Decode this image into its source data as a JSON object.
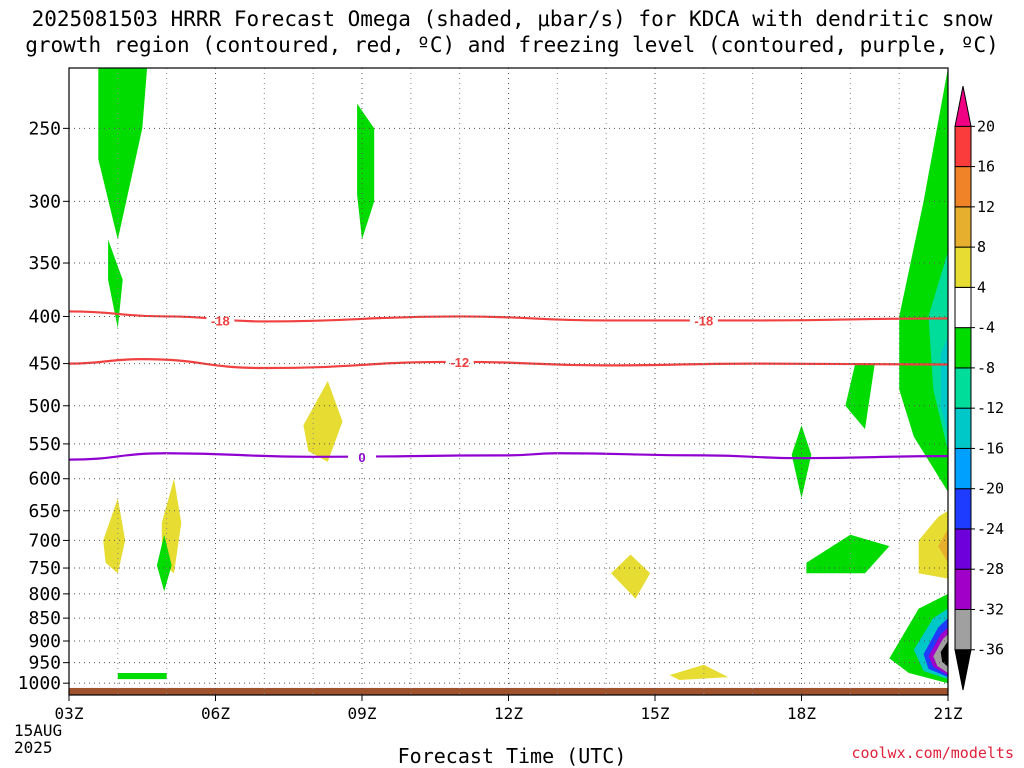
{
  "header": {
    "title_line1": "2025081503 HRRR Forecast Omega (shaded, μbar/s) for KDCA with dendritic snow",
    "title_line2": "growth region (contoured, red, ºC) and freezing level (contoured, purple, ºC)"
  },
  "footer": {
    "credit": "coolwx.com/modelts"
  },
  "chart_data": {
    "type": "heatmap",
    "title": "2025081503 HRRR Forecast Omega (shaded, μbar/s) for KDCA with dendritic snow growth region (contoured, red, ºC) and freezing level (contoured, purple, ºC)",
    "xlabel": "Forecast Time (UTC)",
    "ylabel": "",
    "x_date_label": [
      "15AUG",
      "2025"
    ],
    "x_ticks": [
      {
        "hour": 0,
        "label": "03Z"
      },
      {
        "hour": 3,
        "label": "06Z"
      },
      {
        "hour": 6,
        "label": "09Z"
      },
      {
        "hour": 9,
        "label": "12Z"
      },
      {
        "hour": 12,
        "label": "15Z"
      },
      {
        "hour": 15,
        "label": "18Z"
      },
      {
        "hour": 18,
        "label": "21Z"
      }
    ],
    "xlim": [
      0,
      18
    ],
    "y_ticks": [
      250,
      300,
      350,
      400,
      450,
      500,
      550,
      600,
      650,
      700,
      750,
      800,
      850,
      900,
      950,
      1000
    ],
    "ylim_hpa": [
      1030,
      215
    ],
    "y_scale": "log",
    "grid": true,
    "colorbar": {
      "levels": [
        -36,
        -32,
        -28,
        -24,
        -20,
        -16,
        -12,
        -8,
        -4,
        4,
        8,
        12,
        16,
        20
      ],
      "colors": [
        "#000000",
        "#a0a0a0",
        "#a000c8",
        "#6e00dc",
        "#1e3cff",
        "#00a0ff",
        "#00c8c8",
        "#00dc9a",
        "#00dc00",
        "#ffffff",
        "#e6dc32",
        "#e6af2d",
        "#f08228",
        "#fa3c3c",
        "#f00082"
      ]
    },
    "contours": [
      {
        "label": "-18",
        "color": "#f04040",
        "points": [
          [
            0,
            395
          ],
          [
            2,
            400
          ],
          [
            4,
            405
          ],
          [
            8,
            400
          ],
          [
            11,
            404
          ],
          [
            14,
            404
          ],
          [
            18,
            402
          ]
        ]
      },
      {
        "label": "-12",
        "color": "#f04040",
        "points": [
          [
            0,
            450
          ],
          [
            1.5,
            445
          ],
          [
            4,
            455
          ],
          [
            8,
            448
          ],
          [
            11,
            452
          ],
          [
            14,
            450
          ],
          [
            18,
            451
          ]
        ]
      },
      {
        "label": "0",
        "color": "#9000d0",
        "points": [
          [
            0,
            572
          ],
          [
            2,
            563
          ],
          [
            5,
            568
          ],
          [
            9,
            566
          ],
          [
            10,
            563
          ],
          [
            13,
            566
          ],
          [
            15,
            570
          ],
          [
            18,
            567
          ]
        ]
      }
    ],
    "contour_labels": [
      {
        "label": "-18",
        "hour": 3.1,
        "hpa": 404,
        "color": "#f04040"
      },
      {
        "label": "-18",
        "hour": 13.0,
        "hpa": 404,
        "color": "#f04040"
      },
      {
        "label": "-12",
        "hour": 8.0,
        "hpa": 448,
        "color": "#f04040"
      },
      {
        "label": "0",
        "hour": 6.0,
        "hpa": 568,
        "color": "#9000d0"
      }
    ],
    "shaded_regions": [
      {
        "value": -6,
        "color": "#00dc00",
        "points": [
          [
            0.6,
            215
          ],
          [
            1.6,
            215
          ],
          [
            1.5,
            250
          ],
          [
            1.0,
            330
          ],
          [
            0.6,
            270
          ]
        ]
      },
      {
        "value": -6,
        "color": "#00dc00",
        "points": [
          [
            0.8,
            330
          ],
          [
            1.1,
            365
          ],
          [
            1.0,
            412
          ],
          [
            0.8,
            365
          ]
        ]
      },
      {
        "value": -6,
        "color": "#00dc00",
        "points": [
          [
            5.9,
            235
          ],
          [
            6.25,
            250
          ],
          [
            6.25,
            300
          ],
          [
            6.0,
            330
          ],
          [
            5.9,
            295
          ]
        ]
      },
      {
        "value": 6,
        "color": "#e6dc32",
        "points": [
          [
            4.8,
            525
          ],
          [
            5.3,
            470
          ],
          [
            5.6,
            520
          ],
          [
            5.3,
            575
          ],
          [
            4.9,
            560
          ]
        ]
      },
      {
        "value": 6,
        "color": "#e6dc32",
        "points": [
          [
            0.7,
            700
          ],
          [
            1.0,
            630
          ],
          [
            1.15,
            700
          ],
          [
            1.0,
            760
          ],
          [
            0.75,
            740
          ]
        ]
      },
      {
        "value": 6,
        "color": "#e6dc32",
        "points": [
          [
            1.9,
            670
          ],
          [
            2.15,
            600
          ],
          [
            2.3,
            670
          ],
          [
            2.15,
            760
          ],
          [
            1.9,
            740
          ]
        ]
      },
      {
        "value": -6,
        "color": "#00dc00",
        "points": [
          [
            1.8,
            745
          ],
          [
            1.95,
            690
          ],
          [
            2.1,
            745
          ],
          [
            1.95,
            795
          ]
        ]
      },
      {
        "value": -6,
        "color": "#00dc00",
        "points": [
          [
            1.0,
            975
          ],
          [
            2.0,
            975
          ],
          [
            2.0,
            990
          ],
          [
            1.0,
            990
          ]
        ]
      },
      {
        "value": 6,
        "color": "#e6dc32",
        "points": [
          [
            11.1,
            760
          ],
          [
            11.5,
            725
          ],
          [
            11.9,
            760
          ],
          [
            11.6,
            810
          ]
        ]
      },
      {
        "value": -6,
        "color": "#00dc00",
        "points": [
          [
            14.8,
            565
          ],
          [
            15.0,
            525
          ],
          [
            15.2,
            565
          ],
          [
            15.0,
            630
          ]
        ]
      },
      {
        "value": -6,
        "color": "#00dc00",
        "points": [
          [
            15.9,
            500
          ],
          [
            16.1,
            450
          ],
          [
            16.5,
            450
          ],
          [
            16.3,
            530
          ]
        ]
      },
      {
        "value": -6,
        "color": "#00dc00",
        "points": [
          [
            15.1,
            740
          ],
          [
            16.0,
            690
          ],
          [
            16.8,
            710
          ],
          [
            16.3,
            760
          ],
          [
            15.1,
            760
          ]
        ]
      },
      {
        "value": 6,
        "color": "#e6dc32",
        "points": [
          [
            12.3,
            980
          ],
          [
            13.0,
            955
          ],
          [
            13.5,
            985
          ],
          [
            12.5,
            992
          ]
        ]
      },
      {
        "value": -6,
        "color": "#00dc00",
        "points": [
          [
            17.0,
            400
          ],
          [
            17.5,
            300
          ],
          [
            18.0,
            215
          ],
          [
            18.0,
            620
          ],
          [
            17.3,
            540
          ],
          [
            17.0,
            480
          ]
        ]
      },
      {
        "value": -10,
        "color": "#00dc9a",
        "points": [
          [
            17.6,
            400
          ],
          [
            18.0,
            340
          ],
          [
            18.0,
            560
          ],
          [
            17.7,
            480
          ]
        ]
      },
      {
        "value": -14,
        "color": "#00c8c8",
        "points": [
          [
            17.85,
            440
          ],
          [
            18.0,
            420
          ],
          [
            18.0,
            540
          ],
          [
            17.85,
            500
          ]
        ]
      },
      {
        "value": 6,
        "color": "#e6dc32",
        "points": [
          [
            17.4,
            700
          ],
          [
            17.8,
            660
          ],
          [
            18.0,
            650
          ],
          [
            18.0,
            770
          ],
          [
            17.4,
            760
          ]
        ]
      },
      {
        "value": 10,
        "color": "#e6af2d",
        "points": [
          [
            17.8,
            710
          ],
          [
            18.0,
            680
          ],
          [
            18.0,
            740
          ]
        ]
      },
      {
        "value": -6,
        "color": "#00dc00",
        "points": [
          [
            16.8,
            940
          ],
          [
            17.4,
            830
          ],
          [
            18.0,
            800
          ],
          [
            18.0,
            1000
          ],
          [
            17.2,
            975
          ]
        ]
      },
      {
        "value": -14,
        "color": "#00c8c8",
        "points": [
          [
            17.3,
            920
          ],
          [
            17.7,
            850
          ],
          [
            18.0,
            830
          ],
          [
            18.0,
            990
          ],
          [
            17.5,
            970
          ]
        ]
      },
      {
        "value": -22,
        "color": "#1e3cff",
        "points": [
          [
            17.5,
            930
          ],
          [
            17.8,
            870
          ],
          [
            18.0,
            850
          ],
          [
            18.0,
            985
          ],
          [
            17.6,
            965
          ]
        ]
      },
      {
        "value": -30,
        "color": "#a000c8",
        "points": [
          [
            17.6,
            935
          ],
          [
            17.85,
            885
          ],
          [
            18.0,
            870
          ],
          [
            18.0,
            980
          ],
          [
            17.7,
            960
          ]
        ]
      },
      {
        "value": -34,
        "color": "#a0a0a0",
        "points": [
          [
            17.7,
            935
          ],
          [
            17.9,
            895
          ],
          [
            18.0,
            885
          ],
          [
            18.0,
            975
          ],
          [
            17.78,
            958
          ]
        ]
      },
      {
        "value": -38,
        "color": "#000000",
        "points": [
          [
            17.85,
            925
          ],
          [
            18.0,
            900
          ],
          [
            18.0,
            960
          ],
          [
            17.88,
            948
          ]
        ]
      }
    ],
    "terrain": {
      "color": "#a0522d",
      "top_hpa": 1012,
      "bottom_hpa": 1030
    }
  }
}
